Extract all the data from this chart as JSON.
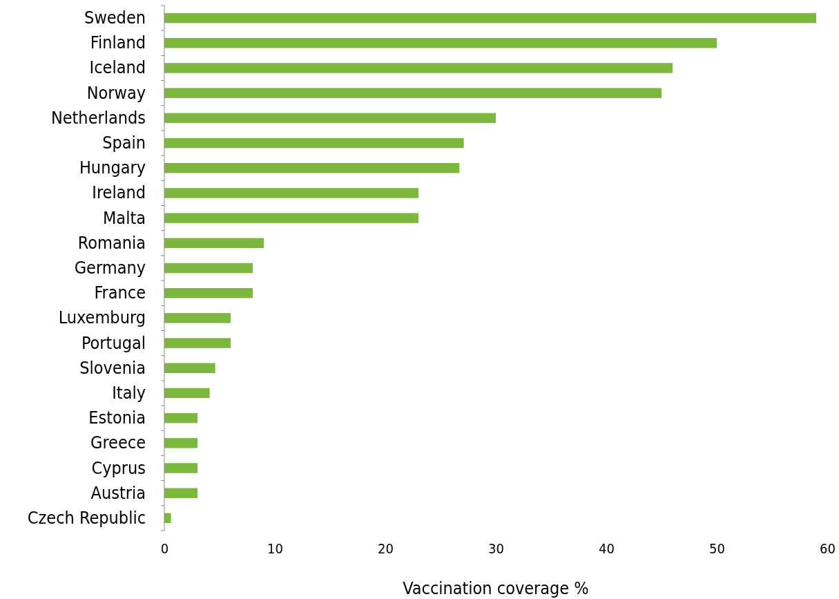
{
  "chart_data": {
    "type": "bar",
    "orientation": "horizontal",
    "xlabel": "Vaccination coverage %",
    "categories": [
      "Sweden",
      "Finland",
      "Iceland",
      "Norway",
      "Netherlands",
      "Spain",
      "Hungary",
      "Ireland",
      "Malta",
      "Romania",
      "Germany",
      "France",
      "Luxemburg",
      "Portugal",
      "Slovenia",
      "Italy",
      "Estonia",
      "Greece",
      "Cyprus",
      "Austria",
      "Czech Republic"
    ],
    "values": [
      59,
      50,
      46,
      45,
      30,
      27.1,
      26.7,
      23,
      23,
      9,
      8,
      8,
      6,
      6,
      4.6,
      4.1,
      3,
      3,
      3,
      3,
      0.6
    ],
    "color": "#7db83e",
    "xlim": [
      0,
      60
    ],
    "xticks": [
      0,
      10,
      20,
      30,
      40,
      50,
      60
    ],
    "grid": false
  }
}
